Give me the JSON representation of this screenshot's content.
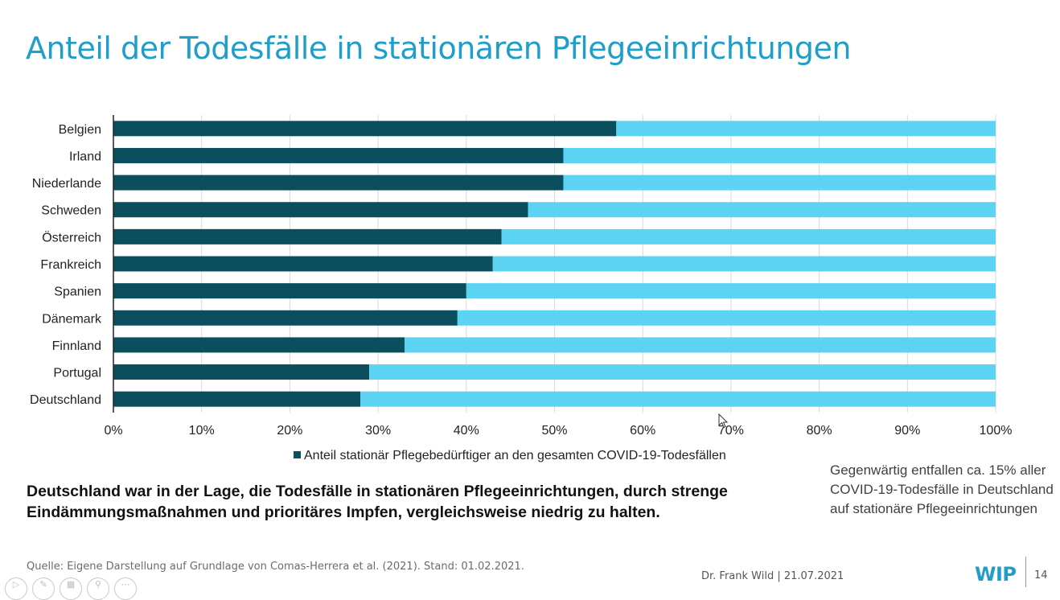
{
  "slide": {
    "title": "Anteil der Todesfälle in stationären Pflegeeinrichtungen",
    "headline": "Deutschland war in der Lage, die Todesfälle in stationären Pflegeeinrichtungen, durch strenge Eindämmungsmaßnahmen und prioritäres Impfen, vergleichsweise niedrig zu halten.",
    "side_note": "Gegenwärtig entfallen ca. 15% aller COVID-19-Todesfälle in Deutschland auf stationäre Pflegeeinrichtungen",
    "source": "Quelle: Eigene Darstellung auf Grundlage von Comas-Herrera et al. (2021). Stand: 01.02.2021.",
    "author_date": "Dr. Frank Wild | 21.07.2021",
    "logo": "WIP",
    "page_number": "14"
  },
  "chart_data": {
    "type": "bar",
    "orientation": "horizontal",
    "stacked": true,
    "categories": [
      "Belgien",
      "Irland",
      "Niederlande",
      "Schweden",
      "Österreich",
      "Frankreich",
      "Spanien",
      "Dänemark",
      "Finnland",
      "Portugal",
      "Deutschland"
    ],
    "series": [
      {
        "name": "Anteil stationär Pflegebedürftiger an den gesamten COVID-19-Todesfällen",
        "values": [
          57,
          51,
          51,
          47,
          44,
          43,
          40,
          39,
          33,
          29,
          28
        ],
        "color": "#0b4f5e"
      },
      {
        "values": [
          43,
          49,
          49,
          53,
          56,
          57,
          60,
          61,
          67,
          71,
          72
        ],
        "color": "#5dd3f3"
      }
    ],
    "x_ticks": [
      "0%",
      "10%",
      "20%",
      "30%",
      "40%",
      "50%",
      "60%",
      "70%",
      "80%",
      "90%",
      "100%"
    ],
    "xlim": [
      0,
      100
    ],
    "grid": true,
    "legend": "bottom"
  },
  "colors": {
    "accent": "#1f9ec9",
    "dark_bar": "#0b4f5e",
    "light_bar": "#5dd3f3",
    "grid": "#d9d9d9"
  },
  "nav_icons": [
    "play-icon",
    "pen-icon",
    "slides-icon",
    "zoom-icon",
    "more-icon"
  ]
}
